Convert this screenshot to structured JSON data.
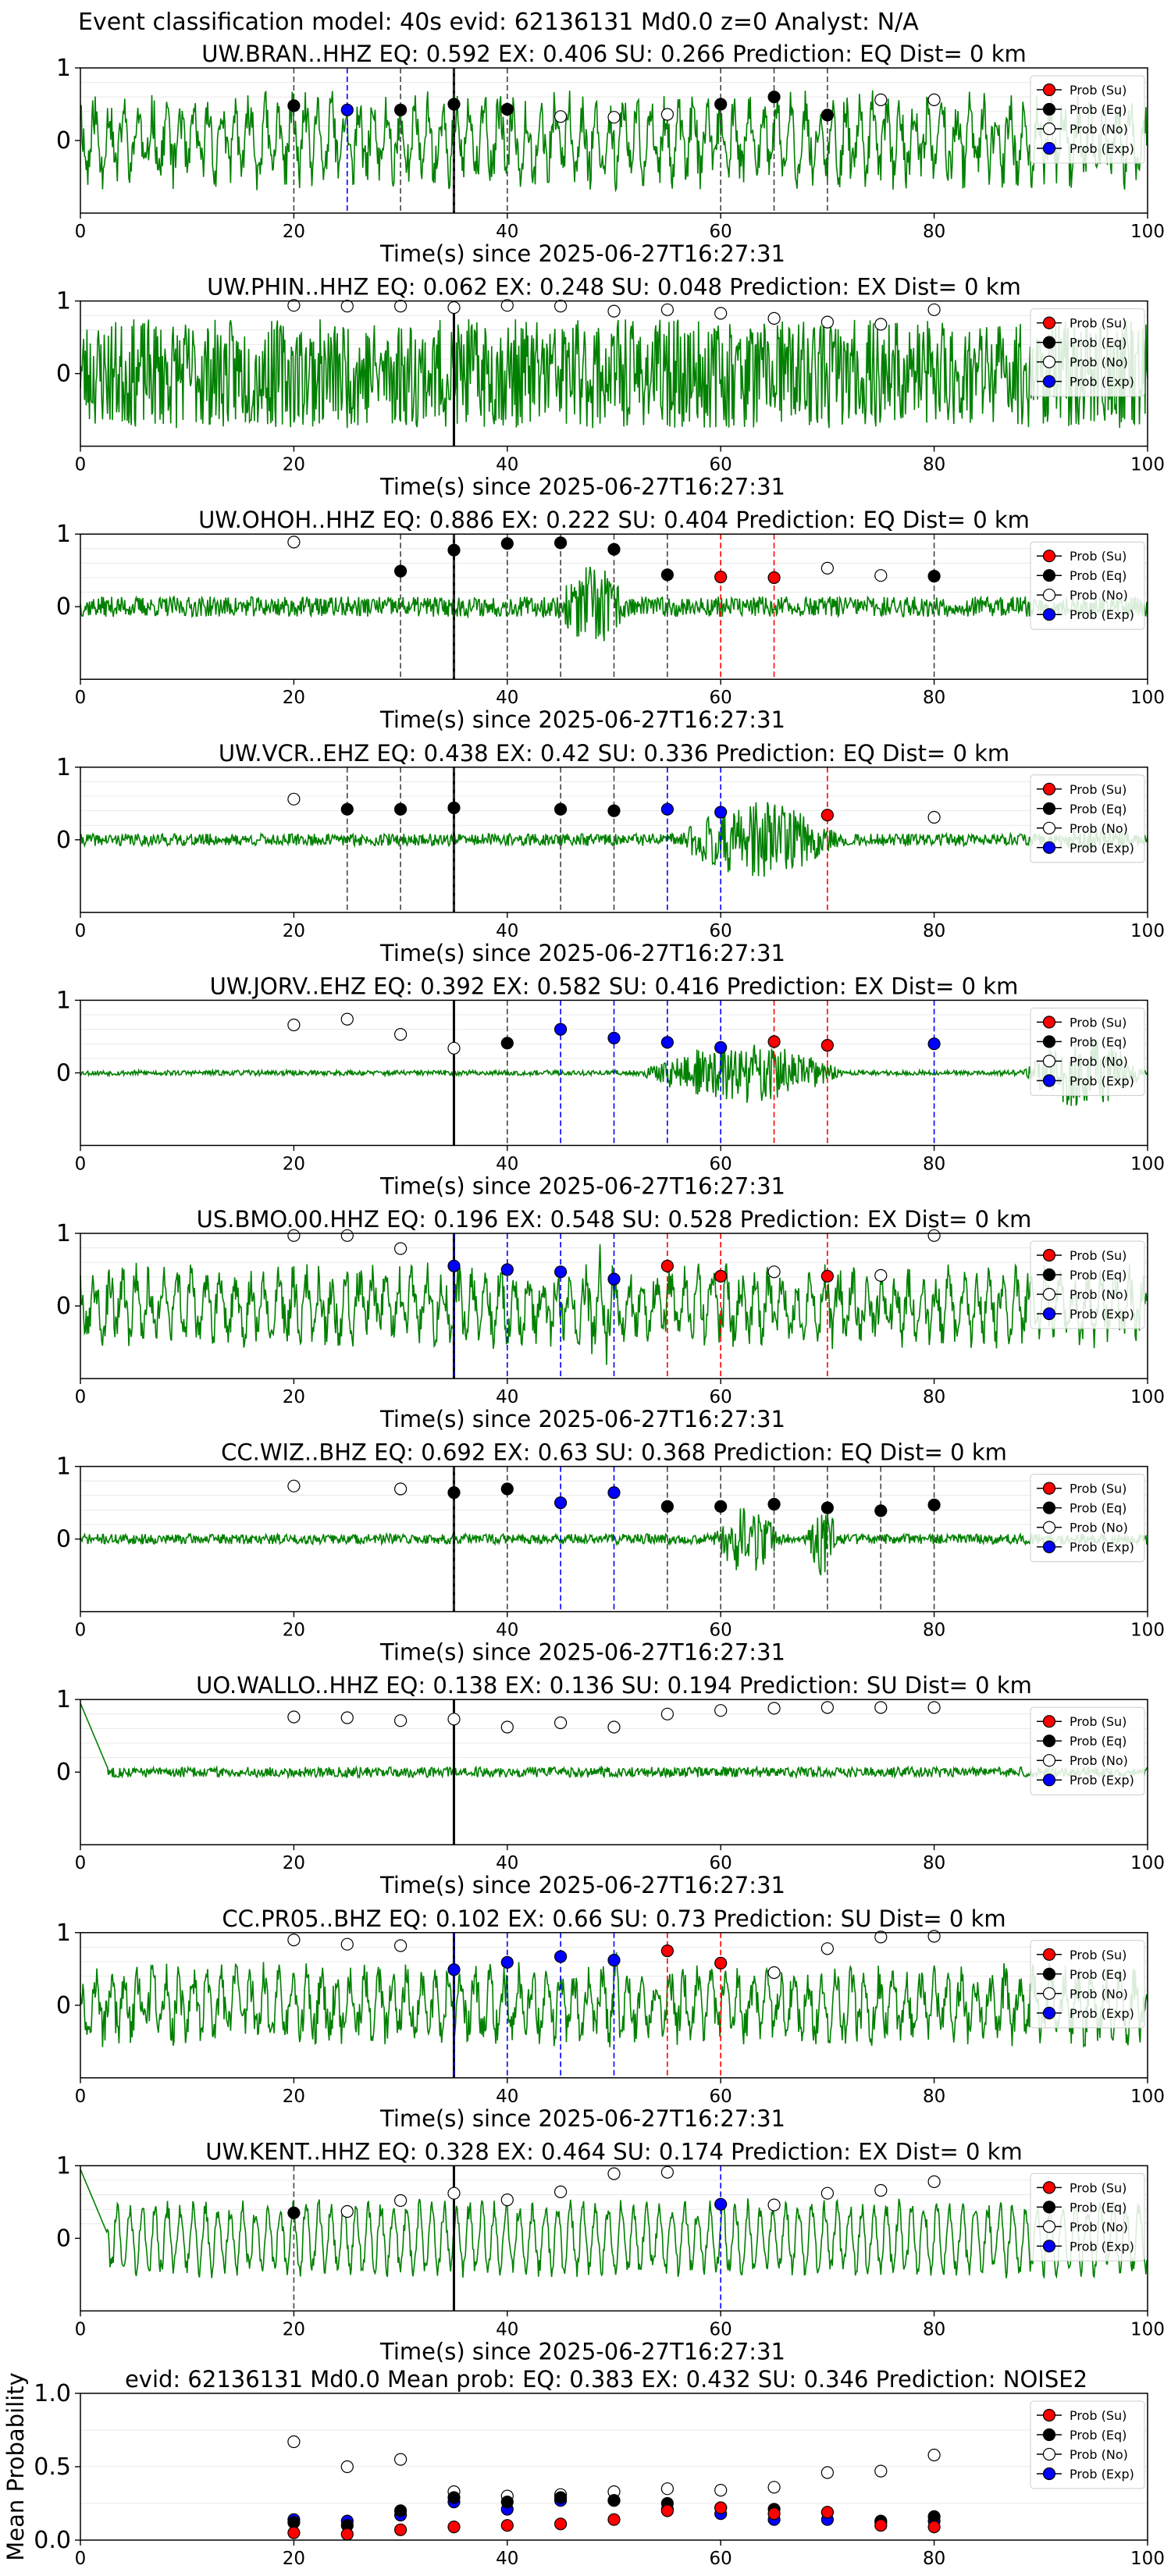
{
  "figure": {
    "suptitle": "Event classification model: 40s evid: 62136131 Md0.0 z=0 Analyst: N/A",
    "xlabel": "Time(s) since 2025-06-27T16:27:31",
    "legend": [
      "Prob (Su)",
      "Prob (Eq)",
      "Prob (No)",
      "Prob (Exp)"
    ],
    "colors": {
      "trace": "#008000",
      "su": "#ff0000",
      "eq": "#000000",
      "no": "#ffffff",
      "exp": "#0000ff",
      "origin_line": "#000000",
      "axes": "#000000",
      "grid": "#e8e8e8"
    }
  },
  "chart_data": [
    {
      "type": "line",
      "title": "UW.BRAN..HHZ   EQ: 0.592  EX: 0.406  SU: 0.266   Prediction: EQ    Dist= 0 km",
      "xlim": [
        0,
        100
      ],
      "ylim": [
        -1,
        1
      ],
      "xticks": [
        0,
        20,
        40,
        60,
        80,
        100
      ],
      "yticks": [
        0,
        1
      ],
      "amplitude": 0.7,
      "seed": 11,
      "style": "busy",
      "bursts": [],
      "origin_time": 35,
      "points": [
        {
          "t": 20,
          "c": "eq",
          "p": 0.48
        },
        {
          "t": 25,
          "c": "exp",
          "p": 0.42
        },
        {
          "t": 30,
          "c": "eq",
          "p": 0.42
        },
        {
          "t": 35,
          "c": "eq",
          "p": 0.5
        },
        {
          "t": 40,
          "c": "eq",
          "p": 0.43
        },
        {
          "t": 45,
          "c": "no",
          "p": 0.33
        },
        {
          "t": 50,
          "c": "no",
          "p": 0.32
        },
        {
          "t": 55,
          "c": "no",
          "p": 0.36
        },
        {
          "t": 60,
          "c": "eq",
          "p": 0.5
        },
        {
          "t": 65,
          "c": "eq",
          "p": 0.6
        },
        {
          "t": 70,
          "c": "eq",
          "p": 0.35
        },
        {
          "t": 75,
          "c": "no",
          "p": 0.56
        },
        {
          "t": 80,
          "c": "no",
          "p": 0.56
        }
      ]
    },
    {
      "type": "line",
      "title": "UW.PHIN..HHZ   EQ: 0.062  EX: 0.248  SU: 0.048   Prediction: EX    Dist= 0 km",
      "xlim": [
        0,
        100
      ],
      "ylim": [
        -1,
        1
      ],
      "xticks": [
        0,
        20,
        40,
        60,
        80,
        100
      ],
      "yticks": [
        0,
        1
      ],
      "amplitude": 0.75,
      "seed": 23,
      "style": "noisy",
      "bursts": [],
      "origin_time": 35,
      "points": [
        {
          "t": 20,
          "c": "no",
          "p": 0.94
        },
        {
          "t": 25,
          "c": "no",
          "p": 0.93
        },
        {
          "t": 30,
          "c": "no",
          "p": 0.93
        },
        {
          "t": 35,
          "c": "no",
          "p": 0.91
        },
        {
          "t": 40,
          "c": "no",
          "p": 0.94
        },
        {
          "t": 45,
          "c": "no",
          "p": 0.93
        },
        {
          "t": 50,
          "c": "no",
          "p": 0.86
        },
        {
          "t": 55,
          "c": "no",
          "p": 0.88
        },
        {
          "t": 60,
          "c": "no",
          "p": 0.83
        },
        {
          "t": 65,
          "c": "no",
          "p": 0.76
        },
        {
          "t": 70,
          "c": "no",
          "p": 0.71
        },
        {
          "t": 75,
          "c": "no",
          "p": 0.68
        },
        {
          "t": 80,
          "c": "no",
          "p": 0.88
        }
      ]
    },
    {
      "type": "line",
      "title": "UW.OHOH..HHZ   EQ: 0.886  EX: 0.222  SU: 0.404   Prediction: EQ    Dist= 0 km",
      "xlim": [
        0,
        100
      ],
      "ylim": [
        -1,
        1
      ],
      "xticks": [
        0,
        20,
        40,
        60,
        80,
        100
      ],
      "yticks": [
        0,
        1
      ],
      "amplitude": 0.2,
      "seed": 37,
      "style": "quiet",
      "bursts": [
        [
          44,
          52,
          0.8
        ]
      ],
      "origin_time": 35,
      "points": [
        {
          "t": 20,
          "c": "no",
          "p": 0.89
        },
        {
          "t": 30,
          "c": "eq",
          "p": 0.49
        },
        {
          "t": 35,
          "c": "eq",
          "p": 0.78
        },
        {
          "t": 40,
          "c": "eq",
          "p": 0.87
        },
        {
          "t": 45,
          "c": "eq",
          "p": 0.88
        },
        {
          "t": 50,
          "c": "eq",
          "p": 0.79
        },
        {
          "t": 55,
          "c": "eq",
          "p": 0.44
        },
        {
          "t": 60,
          "c": "su",
          "p": 0.41
        },
        {
          "t": 65,
          "c": "su",
          "p": 0.4
        },
        {
          "t": 70,
          "c": "no",
          "p": 0.53
        },
        {
          "t": 75,
          "c": "no",
          "p": 0.43
        },
        {
          "t": 80,
          "c": "eq",
          "p": 0.42
        }
      ]
    },
    {
      "type": "line",
      "title": "UW.VCR..EHZ   EQ: 0.438  EX: 0.42  SU: 0.336   Prediction: EQ    Dist= 0 km",
      "xlim": [
        0,
        100
      ],
      "ylim": [
        -1,
        1
      ],
      "xticks": [
        0,
        20,
        40,
        60,
        80,
        100
      ],
      "yticks": [
        0,
        1
      ],
      "amplitude": 0.12,
      "seed": 41,
      "style": "quiet",
      "bursts": [
        [
          55,
          72,
          0.75
        ],
        [
          90,
          100,
          0.25
        ]
      ],
      "origin_time": 35,
      "points": [
        {
          "t": 20,
          "c": "no",
          "p": 0.56
        },
        {
          "t": 25,
          "c": "eq",
          "p": 0.42
        },
        {
          "t": 30,
          "c": "eq",
          "p": 0.42
        },
        {
          "t": 35,
          "c": "eq",
          "p": 0.44
        },
        {
          "t": 45,
          "c": "eq",
          "p": 0.42
        },
        {
          "t": 50,
          "c": "eq",
          "p": 0.4
        },
        {
          "t": 55,
          "c": "exp",
          "p": 0.42
        },
        {
          "t": 60,
          "c": "exp",
          "p": 0.38
        },
        {
          "t": 70,
          "c": "su",
          "p": 0.34
        },
        {
          "t": 80,
          "c": "no",
          "p": 0.31
        }
      ]
    },
    {
      "type": "line",
      "title": "UW.JORV..EHZ   EQ: 0.392  EX: 0.582  SU: 0.416   Prediction: EX    Dist= 0 km",
      "xlim": [
        0,
        100
      ],
      "ylim": [
        -1,
        1
      ],
      "xticks": [
        0,
        20,
        40,
        60,
        80,
        100
      ],
      "yticks": [
        0,
        1
      ],
      "amplitude": 0.05,
      "seed": 53,
      "style": "quiet",
      "bursts": [
        [
          52,
          72,
          0.6
        ],
        [
          88,
          100,
          0.7
        ]
      ],
      "origin_time": 35,
      "points": [
        {
          "t": 20,
          "c": "no",
          "p": 0.66
        },
        {
          "t": 25,
          "c": "no",
          "p": 0.74
        },
        {
          "t": 30,
          "c": "no",
          "p": 0.53
        },
        {
          "t": 35,
          "c": "no",
          "p": 0.34
        },
        {
          "t": 40,
          "c": "eq",
          "p": 0.41
        },
        {
          "t": 45,
          "c": "exp",
          "p": 0.6
        },
        {
          "t": 50,
          "c": "exp",
          "p": 0.48
        },
        {
          "t": 55,
          "c": "exp",
          "p": 0.42
        },
        {
          "t": 60,
          "c": "exp",
          "p": 0.35
        },
        {
          "t": 65,
          "c": "su",
          "p": 0.43
        },
        {
          "t": 70,
          "c": "su",
          "p": 0.38
        },
        {
          "t": 80,
          "c": "exp",
          "p": 0.4
        }
      ]
    },
    {
      "type": "line",
      "title": "US.BMO.00.HHZ   EQ: 0.196  EX: 0.548  SU: 0.528   Prediction: EX    Dist= 0 km",
      "xlim": [
        0,
        100
      ],
      "ylim": [
        -1,
        1
      ],
      "xticks": [
        0,
        20,
        40,
        60,
        80,
        100
      ],
      "yticks": [
        0,
        1
      ],
      "amplitude": 0.6,
      "seed": 67,
      "style": "busy",
      "bursts": [
        [
          45,
          52,
          0.9
        ]
      ],
      "origin_time": 35,
      "points": [
        {
          "t": 20,
          "c": "no",
          "p": 0.97
        },
        {
          "t": 25,
          "c": "no",
          "p": 0.97
        },
        {
          "t": 30,
          "c": "no",
          "p": 0.79
        },
        {
          "t": 35,
          "c": "exp",
          "p": 0.55
        },
        {
          "t": 40,
          "c": "exp",
          "p": 0.5
        },
        {
          "t": 45,
          "c": "exp",
          "p": 0.47
        },
        {
          "t": 50,
          "c": "exp",
          "p": 0.37
        },
        {
          "t": 55,
          "c": "su",
          "p": 0.55
        },
        {
          "t": 60,
          "c": "su",
          "p": 0.41
        },
        {
          "t": 65,
          "c": "no",
          "p": 0.47
        },
        {
          "t": 70,
          "c": "su",
          "p": 0.41
        },
        {
          "t": 75,
          "c": "no",
          "p": 0.42
        },
        {
          "t": 80,
          "c": "no",
          "p": 0.97
        }
      ]
    },
    {
      "type": "line",
      "title": "CC.WIZ..BHZ   EQ: 0.692  EX: 0.63  SU: 0.368   Prediction: EQ    Dist= 0 km",
      "xlim": [
        0,
        100
      ],
      "ylim": [
        -1,
        1
      ],
      "xticks": [
        0,
        20,
        40,
        60,
        80,
        100
      ],
      "yticks": [
        0,
        1
      ],
      "amplitude": 0.1,
      "seed": 71,
      "style": "quiet",
      "bursts": [
        [
          59,
          66,
          0.7
        ],
        [
          68,
          71,
          0.85
        ]
      ],
      "origin_time": 35,
      "points": [
        {
          "t": 20,
          "c": "no",
          "p": 0.73
        },
        {
          "t": 30,
          "c": "no",
          "p": 0.69
        },
        {
          "t": 35,
          "c": "eq",
          "p": 0.64
        },
        {
          "t": 40,
          "c": "eq",
          "p": 0.69
        },
        {
          "t": 45,
          "c": "exp",
          "p": 0.5
        },
        {
          "t": 50,
          "c": "exp",
          "p": 0.64
        },
        {
          "t": 55,
          "c": "eq",
          "p": 0.45
        },
        {
          "t": 60,
          "c": "eq",
          "p": 0.45
        },
        {
          "t": 65,
          "c": "eq",
          "p": 0.48
        },
        {
          "t": 70,
          "c": "eq",
          "p": 0.43
        },
        {
          "t": 75,
          "c": "eq",
          "p": 0.39
        },
        {
          "t": 80,
          "c": "eq",
          "p": 0.47
        }
      ]
    },
    {
      "type": "line",
      "title": "UO.WALLO..HHZ   EQ: 0.138  EX: 0.136  SU: 0.194   Prediction: SU    Dist= 0 km",
      "xlim": [
        0,
        100
      ],
      "ylim": [
        -1,
        1
      ],
      "xticks": [
        0,
        20,
        40,
        60,
        80,
        100
      ],
      "yticks": [
        0,
        1
      ],
      "amplitude": 0.1,
      "seed": 83,
      "style": "quiet",
      "bursts": [],
      "spike_start": true,
      "origin_time": 35,
      "points": [
        {
          "t": 20,
          "c": "no",
          "p": 0.76
        },
        {
          "t": 25,
          "c": "no",
          "p": 0.75
        },
        {
          "t": 30,
          "c": "no",
          "p": 0.71
        },
        {
          "t": 35,
          "c": "no",
          "p": 0.73
        },
        {
          "t": 40,
          "c": "no",
          "p": 0.62
        },
        {
          "t": 45,
          "c": "no",
          "p": 0.68
        },
        {
          "t": 50,
          "c": "no",
          "p": 0.62
        },
        {
          "t": 55,
          "c": "no",
          "p": 0.8
        },
        {
          "t": 60,
          "c": "no",
          "p": 0.85
        },
        {
          "t": 65,
          "c": "no",
          "p": 0.88
        },
        {
          "t": 70,
          "c": "no",
          "p": 0.89
        },
        {
          "t": 75,
          "c": "no",
          "p": 0.89
        },
        {
          "t": 80,
          "c": "no",
          "p": 0.89
        }
      ]
    },
    {
      "type": "line",
      "title": "CC.PR05..BHZ   EQ: 0.102  EX: 0.66  SU: 0.73   Prediction: SU    Dist= 0 km",
      "xlim": [
        0,
        100
      ],
      "ylim": [
        -1,
        1
      ],
      "xticks": [
        0,
        20,
        40,
        60,
        80,
        100
      ],
      "yticks": [
        0,
        1
      ],
      "amplitude": 0.6,
      "seed": 97,
      "style": "busy",
      "bursts": [
        [
          48,
          52,
          0.9
        ]
      ],
      "origin_time": 35,
      "points": [
        {
          "t": 20,
          "c": "no",
          "p": 0.9
        },
        {
          "t": 25,
          "c": "no",
          "p": 0.84
        },
        {
          "t": 30,
          "c": "no",
          "p": 0.82
        },
        {
          "t": 35,
          "c": "exp",
          "p": 0.49
        },
        {
          "t": 40,
          "c": "exp",
          "p": 0.59
        },
        {
          "t": 45,
          "c": "exp",
          "p": 0.67
        },
        {
          "t": 50,
          "c": "exp",
          "p": 0.62
        },
        {
          "t": 55,
          "c": "su",
          "p": 0.75
        },
        {
          "t": 60,
          "c": "su",
          "p": 0.58
        },
        {
          "t": 65,
          "c": "no",
          "p": 0.45
        },
        {
          "t": 70,
          "c": "no",
          "p": 0.78
        },
        {
          "t": 75,
          "c": "no",
          "p": 0.94
        },
        {
          "t": 80,
          "c": "no",
          "p": 0.95
        }
      ]
    },
    {
      "type": "line",
      "title": "UW.KENT..HHZ   EQ: 0.328  EX: 0.464  SU: 0.174   Prediction: EX    Dist= 0 km",
      "xlim": [
        0,
        100
      ],
      "ylim": [
        -1,
        1
      ],
      "xticks": [
        0,
        20,
        40,
        60,
        80,
        100
      ],
      "yticks": [
        0,
        1
      ],
      "amplitude": 0.55,
      "seed": 101,
      "style": "wavy",
      "bursts": [],
      "spike_start": true,
      "origin_time": 35,
      "points": [
        {
          "t": 20,
          "c": "eq",
          "p": 0.35
        },
        {
          "t": 25,
          "c": "no",
          "p": 0.37
        },
        {
          "t": 30,
          "c": "no",
          "p": 0.52
        },
        {
          "t": 35,
          "c": "no",
          "p": 0.62
        },
        {
          "t": 40,
          "c": "no",
          "p": 0.53
        },
        {
          "t": 45,
          "c": "no",
          "p": 0.64
        },
        {
          "t": 50,
          "c": "no",
          "p": 0.89
        },
        {
          "t": 55,
          "c": "no",
          "p": 0.91
        },
        {
          "t": 60,
          "c": "exp",
          "p": 0.47
        },
        {
          "t": 65,
          "c": "no",
          "p": 0.46
        },
        {
          "t": 70,
          "c": "no",
          "p": 0.62
        },
        {
          "t": 75,
          "c": "no",
          "p": 0.66
        },
        {
          "t": 80,
          "c": "no",
          "p": 0.78
        }
      ]
    },
    {
      "type": "scatter",
      "title": "evid: 62136131  Md0.0   Mean prob:   EQ: 0.383  EX: 0.432  SU: 0.346   Prediction: NOISE2",
      "ylabel": "Mean Probability",
      "xlim": [
        0,
        100
      ],
      "ylim": [
        0,
        1
      ],
      "xticks": [
        0,
        20,
        40,
        60,
        80,
        100
      ],
      "yticks": [
        0.0,
        0.5,
        1.0
      ],
      "ytick_labels": [
        "0.0",
        "0.5",
        "1.0"
      ],
      "t": [
        20,
        25,
        30,
        35,
        40,
        45,
        50,
        55,
        60,
        65,
        70,
        75,
        80
      ],
      "series": [
        {
          "class": "no",
          "values": [
            0.67,
            0.5,
            0.55,
            0.33,
            0.3,
            0.31,
            0.33,
            0.35,
            0.34,
            0.36,
            0.46,
            0.47,
            0.58
          ]
        },
        {
          "class": "exp",
          "values": [
            0.14,
            0.13,
            0.17,
            0.26,
            0.21,
            0.27,
            0.27,
            0.21,
            0.18,
            0.14,
            0.14,
            0.12,
            0.13
          ]
        },
        {
          "class": "eq",
          "values": [
            0.12,
            0.1,
            0.2,
            0.29,
            0.26,
            0.29,
            0.27,
            0.25,
            0.22,
            0.21,
            0.19,
            0.13,
            0.16
          ]
        },
        {
          "class": "su",
          "values": [
            0.05,
            0.04,
            0.07,
            0.09,
            0.1,
            0.11,
            0.14,
            0.2,
            0.22,
            0.18,
            0.19,
            0.1,
            0.09
          ]
        }
      ]
    }
  ]
}
